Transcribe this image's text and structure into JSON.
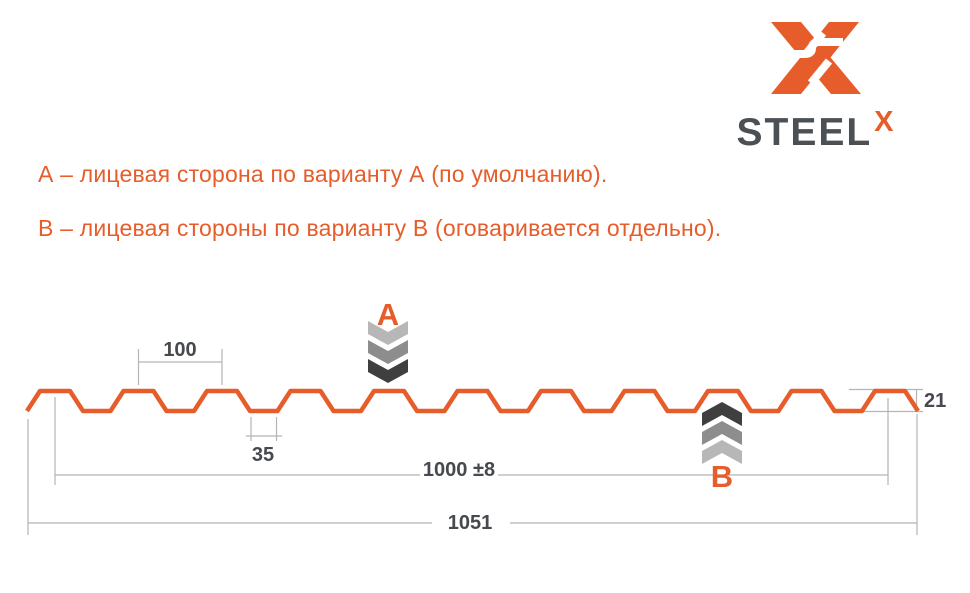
{
  "logo": {
    "brand": "STEEL",
    "sup": "X"
  },
  "notes": [
    {
      "text": "А – лицевая сторона по варианту А (по умолчанию)."
    },
    {
      "text": "В – лицевая стороны по варианту В (оговаривается отдельно)."
    }
  ],
  "markers": {
    "a": "А",
    "b": "В"
  },
  "dims": {
    "pitch": "100",
    "rib": "35",
    "height": "21",
    "cover": "1000 ±8",
    "total": "1051"
  },
  "colors": {
    "orange": "#e65d2b",
    "steel_dark": "#4b5055",
    "dim_ink": "#46494e",
    "dim_line": "#b4b4b4",
    "chev_light": "#b7b7b7",
    "chev_mid": "#8d8d8d",
    "chev_dark": "#3f3f3f"
  }
}
